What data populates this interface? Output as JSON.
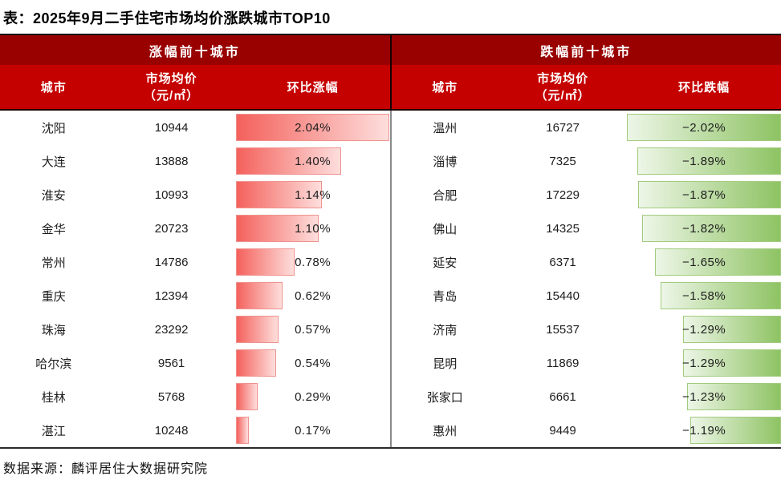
{
  "title": "表：2025年9月二手住宅市场均价涨跌城市TOP10",
  "footer": "数据来源：麟评居住大数据研究院",
  "colors": {
    "group_header_bg": "#990100",
    "col_header_bg": "#c50100",
    "gain_bar_start": "#f4615c",
    "gain_bar_end": "#fddedc",
    "gain_bar_border": "#ef928e",
    "loss_bar_start": "#edf6e7",
    "loss_bar_end": "#8ec363",
    "loss_bar_border": "#a2cb7e",
    "header_text": "#ffffff",
    "body_text": "#1c1c1c"
  },
  "panels": {
    "gain": {
      "group_title": "涨幅前十城市",
      "columns": {
        "city": "城市",
        "price_line1": "市场均价",
        "price_line2": "（元/㎡）",
        "change": "环比涨幅"
      },
      "rows": [
        {
          "city": "沈阳",
          "price": "10944",
          "change": "2.04%",
          "value": 2.04
        },
        {
          "city": "大连",
          "price": "13888",
          "change": "1.40%",
          "value": 1.4
        },
        {
          "city": "淮安",
          "price": "10993",
          "change": "1.14%",
          "value": 1.14
        },
        {
          "city": "金华",
          "price": "20723",
          "change": "1.10%",
          "value": 1.1
        },
        {
          "city": "常州",
          "price": "14786",
          "change": "0.78%",
          "value": 0.78
        },
        {
          "city": "重庆",
          "price": "12394",
          "change": "0.62%",
          "value": 0.62
        },
        {
          "city": "珠海",
          "price": "23292",
          "change": "0.57%",
          "value": 0.57
        },
        {
          "city": "哈尔滨",
          "price": "9561",
          "change": "0.54%",
          "value": 0.54
        },
        {
          "city": "桂林",
          "price": "5768",
          "change": "0.29%",
          "value": 0.29
        },
        {
          "city": "湛江",
          "price": "10248",
          "change": "0.17%",
          "value": 0.17
        }
      ]
    },
    "loss": {
      "group_title": "跌幅前十城市",
      "columns": {
        "city": "城市",
        "price_line1": "市场均价",
        "price_line2": "（元/㎡）",
        "change": "环比跌幅"
      },
      "rows": [
        {
          "city": "温州",
          "price": "16727",
          "change": "−2.02%",
          "value": -2.02
        },
        {
          "city": "淄博",
          "price": "7325",
          "change": "−1.89%",
          "value": -1.89
        },
        {
          "city": "合肥",
          "price": "17229",
          "change": "−1.87%",
          "value": -1.87
        },
        {
          "city": "佛山",
          "price": "14325",
          "change": "−1.82%",
          "value": -1.82
        },
        {
          "city": "延安",
          "price": "6371",
          "change": "−1.65%",
          "value": -1.65
        },
        {
          "city": "青岛",
          "price": "15440",
          "change": "−1.58%",
          "value": -1.58
        },
        {
          "city": "济南",
          "price": "15537",
          "change": "−1.29%",
          "value": -1.29
        },
        {
          "city": "昆明",
          "price": "11869",
          "change": "−1.29%",
          "value": -1.29
        },
        {
          "city": "张家口",
          "price": "6661",
          "change": "−1.23%",
          "value": -1.23
        },
        {
          "city": "惠州",
          "price": "9449",
          "change": "−1.19%",
          "value": -1.19
        }
      ]
    }
  },
  "chart_data": [
    {
      "type": "bar",
      "title": "涨幅前十城市",
      "categories": [
        "沈阳",
        "大连",
        "淮安",
        "金华",
        "常州",
        "重庆",
        "珠海",
        "哈尔滨",
        "桂林",
        "湛江"
      ],
      "values": [
        2.04,
        1.4,
        1.14,
        1.1,
        0.78,
        0.62,
        0.57,
        0.54,
        0.29,
        0.17
      ],
      "series": [
        {
          "name": "市场均价（元/㎡）",
          "values": [
            10944,
            13888,
            10993,
            20723,
            14786,
            12394,
            23292,
            9561,
            5768,
            10248
          ]
        },
        {
          "name": "环比涨幅（%）",
          "values": [
            2.04,
            1.4,
            1.14,
            1.1,
            0.78,
            0.62,
            0.57,
            0.54,
            0.29,
            0.17
          ]
        }
      ],
      "xlabel": "环比涨幅",
      "ylabel": "城市",
      "xlim": [
        0,
        2.04
      ],
      "legend_position": "none",
      "grid": false,
      "orientation": "horizontal",
      "bar_color_gradient": [
        "#f4615c",
        "#fddedc"
      ]
    },
    {
      "type": "bar",
      "title": "跌幅前十城市",
      "categories": [
        "温州",
        "淄博",
        "合肥",
        "佛山",
        "延安",
        "青岛",
        "济南",
        "昆明",
        "张家口",
        "惠州"
      ],
      "values": [
        -2.02,
        -1.89,
        -1.87,
        -1.82,
        -1.65,
        -1.58,
        -1.29,
        -1.29,
        -1.23,
        -1.19
      ],
      "series": [
        {
          "name": "市场均价（元/㎡）",
          "values": [
            16727,
            7325,
            17229,
            14325,
            6371,
            15440,
            15537,
            11869,
            6661,
            9449
          ]
        },
        {
          "name": "环比跌幅（%）",
          "values": [
            -2.02,
            -1.89,
            -1.87,
            -1.82,
            -1.65,
            -1.58,
            -1.29,
            -1.29,
            -1.23,
            -1.19
          ]
        }
      ],
      "xlabel": "环比跌幅",
      "ylabel": "城市",
      "xlim": [
        -2.02,
        0
      ],
      "legend_position": "none",
      "grid": false,
      "orientation": "horizontal",
      "bar_color_gradient": [
        "#edf6e7",
        "#8ec363"
      ]
    }
  ]
}
